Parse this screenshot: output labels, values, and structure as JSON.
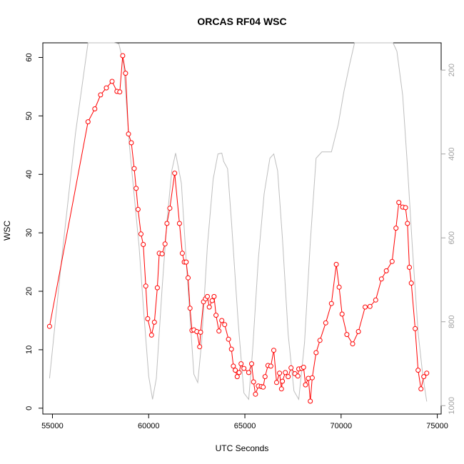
{
  "chart_data": {
    "type": "line",
    "title": "ORCAS RF04 WSC",
    "xlabel": "UTC Seconds",
    "ylabel": "WSC",
    "xlim": [
      54500,
      75200
    ],
    "ylim": [
      -1,
      62.5
    ],
    "x_ticks": [
      55000,
      60000,
      65000,
      70000,
      75000
    ],
    "y_ticks": [
      0,
      10,
      20,
      30,
      40,
      50,
      60
    ],
    "y2_ticks": [
      200,
      400,
      600,
      800,
      1000
    ],
    "y2lim": [
      1020,
      135
    ],
    "y2_inverted": true,
    "grid": false,
    "series": [
      {
        "color": "#ff0000",
        "marker": "open-circle",
        "axis": "left",
        "points": [
          [
            54850,
            14.0
          ],
          [
            56850,
            49.0
          ],
          [
            57200,
            51.2
          ],
          [
            57500,
            53.6
          ],
          [
            57800,
            54.8
          ],
          [
            58100,
            55.9
          ],
          [
            58350,
            54.2
          ],
          [
            58500,
            54.1
          ],
          [
            58650,
            60.3
          ],
          [
            58800,
            57.3
          ],
          [
            58950,
            46.9
          ],
          [
            59100,
            45.4
          ],
          [
            59250,
            41.0
          ],
          [
            59350,
            37.6
          ],
          [
            59450,
            34.0
          ],
          [
            59600,
            29.8
          ],
          [
            59720,
            28.0
          ],
          [
            59850,
            20.9
          ],
          [
            59950,
            15.3
          ],
          [
            60150,
            12.5
          ],
          [
            60300,
            14.7
          ],
          [
            60450,
            20.6
          ],
          [
            60550,
            26.5
          ],
          [
            60700,
            26.4
          ],
          [
            60850,
            28.1
          ],
          [
            60950,
            31.6
          ],
          [
            61100,
            34.2
          ],
          [
            61350,
            40.2
          ],
          [
            61600,
            31.6
          ],
          [
            61750,
            26.5
          ],
          [
            61850,
            25.0
          ],
          [
            61950,
            25.0
          ],
          [
            62050,
            22.3
          ],
          [
            62150,
            17.1
          ],
          [
            62250,
            13.3
          ],
          [
            62350,
            13.4
          ],
          [
            62500,
            13.1
          ],
          [
            62650,
            10.5
          ],
          [
            62700,
            13.0
          ],
          [
            62850,
            18.2
          ],
          [
            62950,
            18.7
          ],
          [
            63050,
            19.1
          ],
          [
            63150,
            17.3
          ],
          [
            63300,
            18.4
          ],
          [
            63400,
            19.1
          ],
          [
            63500,
            15.9
          ],
          [
            63650,
            13.2
          ],
          [
            63800,
            15.0
          ],
          [
            63950,
            14.3
          ],
          [
            64150,
            11.8
          ],
          [
            64300,
            10.1
          ],
          [
            64400,
            7.2
          ],
          [
            64500,
            6.5
          ],
          [
            64600,
            5.4
          ],
          [
            64700,
            6.1
          ],
          [
            64800,
            7.6
          ],
          [
            64950,
            6.8
          ],
          [
            65200,
            6.1
          ],
          [
            65350,
            7.6
          ],
          [
            65450,
            4.5
          ],
          [
            65550,
            2.4
          ],
          [
            65700,
            3.8
          ],
          [
            65850,
            3.7
          ],
          [
            65950,
            3.6
          ],
          [
            66050,
            5.4
          ],
          [
            66200,
            7.3
          ],
          [
            66350,
            7.2
          ],
          [
            66500,
            9.9
          ],
          [
            66650,
            4.4
          ],
          [
            66800,
            6.0
          ],
          [
            66900,
            3.3
          ],
          [
            66950,
            4.6
          ],
          [
            67100,
            6.1
          ],
          [
            67250,
            5.4
          ],
          [
            67400,
            6.9
          ],
          [
            67600,
            5.9
          ],
          [
            67750,
            5.5
          ],
          [
            67800,
            6.7
          ],
          [
            67950,
            6.8
          ],
          [
            68050,
            7.0
          ],
          [
            68150,
            4.0
          ],
          [
            68300,
            5.1
          ],
          [
            68400,
            1.2
          ],
          [
            68500,
            5.2
          ],
          [
            68700,
            9.5
          ],
          [
            68900,
            11.6
          ],
          [
            69200,
            14.6
          ],
          [
            69500,
            17.9
          ],
          [
            69750,
            24.6
          ],
          [
            69900,
            20.7
          ],
          [
            70050,
            16.1
          ],
          [
            70300,
            12.6
          ],
          [
            70600,
            11.0
          ],
          [
            70900,
            13.1
          ],
          [
            71250,
            17.3
          ],
          [
            71500,
            17.4
          ],
          [
            71800,
            18.5
          ],
          [
            72100,
            22.1
          ],
          [
            72350,
            23.5
          ],
          [
            72650,
            25.1
          ],
          [
            72850,
            30.8
          ],
          [
            73000,
            35.2
          ],
          [
            73200,
            34.4
          ],
          [
            73350,
            34.3
          ],
          [
            73450,
            31.6
          ],
          [
            73550,
            24.1
          ],
          [
            73650,
            21.4
          ],
          [
            73850,
            13.6
          ],
          [
            74000,
            6.5
          ],
          [
            74150,
            3.3
          ],
          [
            74300,
            5.4
          ],
          [
            74450,
            6.0
          ]
        ]
      },
      {
        "color": "#bebebe",
        "marker": "none",
        "axis": "right",
        "points": [
          [
            54850,
            935
          ],
          [
            55500,
            640
          ],
          [
            56200,
            350
          ],
          [
            56850,
            135
          ],
          [
            58200,
            135
          ],
          [
            58450,
            137
          ],
          [
            58700,
            185
          ],
          [
            59000,
            380
          ],
          [
            59500,
            620
          ],
          [
            59750,
            780
          ],
          [
            60000,
            930
          ],
          [
            60200,
            985
          ],
          [
            60400,
            935
          ],
          [
            60700,
            720
          ],
          [
            60950,
            560
          ],
          [
            61200,
            440
          ],
          [
            61400,
            398
          ],
          [
            61700,
            470
          ],
          [
            62000,
            690
          ],
          [
            62350,
            925
          ],
          [
            62550,
            945
          ],
          [
            62750,
            850
          ],
          [
            63050,
            620
          ],
          [
            63350,
            460
          ],
          [
            63600,
            400
          ],
          [
            63800,
            398
          ],
          [
            63900,
            418
          ],
          [
            64100,
            435
          ],
          [
            64300,
            560
          ],
          [
            64650,
            800
          ],
          [
            64950,
            970
          ],
          [
            65200,
            985
          ],
          [
            65400,
            870
          ],
          [
            65700,
            650
          ],
          [
            66000,
            495
          ],
          [
            66300,
            410
          ],
          [
            66500,
            400
          ],
          [
            66700,
            440
          ],
          [
            66950,
            600
          ],
          [
            67250,
            830
          ],
          [
            67550,
            965
          ],
          [
            67800,
            985
          ],
          [
            68100,
            850
          ],
          [
            68400,
            610
          ],
          [
            68700,
            410
          ],
          [
            69000,
            395
          ],
          [
            69500,
            395
          ],
          [
            69850,
            330
          ],
          [
            70150,
            250
          ],
          [
            70450,
            185
          ],
          [
            70700,
            135
          ],
          [
            72700,
            135
          ],
          [
            72900,
            155
          ],
          [
            73200,
            260
          ],
          [
            73450,
            430
          ],
          [
            73700,
            620
          ],
          [
            74000,
            825
          ],
          [
            74250,
            930
          ],
          [
            74450,
            990
          ]
        ]
      }
    ]
  }
}
